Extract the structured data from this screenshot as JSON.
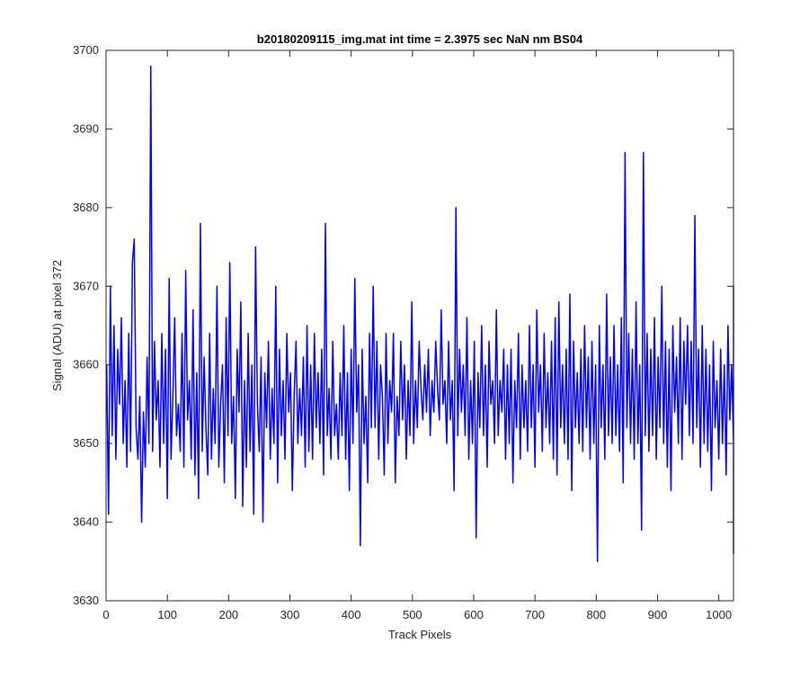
{
  "figure": {
    "background": "#ffffff",
    "axes_color": "#262626",
    "line_color": "#0000ff"
  },
  "chart_data": {
    "type": "line",
    "title": "b20180209115_img.mat int time = 2.3975 sec  NaN nm BS04",
    "xlabel": "Track Pixels",
    "ylabel": "Signal (ADU) at pixel 372",
    "xlim": [
      0,
      1024
    ],
    "ylim": [
      3630,
      3700
    ],
    "xticks": [
      0,
      100,
      200,
      300,
      400,
      500,
      600,
      700,
      800,
      900,
      1000
    ],
    "yticks": [
      3630,
      3640,
      3650,
      3660,
      3670,
      3680,
      3690,
      3700
    ],
    "grid": false,
    "legend": "none",
    "series": [
      {
        "color": "#0000ff",
        "x_start": 1,
        "x_step": 3,
        "values": [
          3660,
          3641,
          3670,
          3651,
          3665,
          3648,
          3662,
          3655,
          3666,
          3650,
          3658,
          3647,
          3664,
          3649,
          3673,
          3676,
          3652,
          3648,
          3656,
          3640,
          3654,
          3647,
          3661,
          3650,
          3698,
          3649,
          3663,
          3653,
          3658,
          3647,
          3664,
          3650,
          3662,
          3643,
          3671,
          3648,
          3656,
          3666,
          3651,
          3655,
          3649,
          3664,
          3647,
          3672,
          3653,
          3658,
          3648,
          3667,
          3646,
          3659,
          3643,
          3678,
          3649,
          3661,
          3652,
          3646,
          3664,
          3648,
          3657,
          3650,
          3670,
          3647,
          3655,
          3660,
          3645,
          3666,
          3651,
          3673,
          3650,
          3656,
          3643,
          3662,
          3654,
          3668,
          3642,
          3658,
          3647,
          3664,
          3649,
          3660,
          3641,
          3675,
          3655,
          3649,
          3661,
          3640,
          3659,
          3652,
          3663,
          3648,
          3657,
          3650,
          3670,
          3645,
          3662,
          3651,
          3658,
          3648,
          3664,
          3654,
          3659,
          3644,
          3656,
          3663,
          3650,
          3657,
          3651,
          3661,
          3647,
          3665,
          3649,
          3660,
          3648,
          3664,
          3652,
          3659,
          3650,
          3662,
          3646,
          3678,
          3651,
          3657,
          3648,
          3663,
          3651,
          3655,
          3648,
          3659,
          3651,
          3665,
          3648,
          3659,
          3644,
          3662,
          3650,
          3671,
          3654,
          3660,
          3637,
          3662,
          3650,
          3656,
          3645,
          3664,
          3652,
          3670,
          3652,
          3663,
          3648,
          3660,
          3656,
          3646,
          3664,
          3650,
          3658,
          3654,
          3664,
          3645,
          3656,
          3651,
          3663,
          3653,
          3660,
          3648,
          3658,
          3651,
          3668,
          3650,
          3658,
          3652,
          3663,
          3657,
          3653,
          3660,
          3654,
          3662,
          3651,
          3658,
          3654,
          3663,
          3657,
          3653,
          3667,
          3655,
          3658,
          3650,
          3663,
          3653,
          3658,
          3644,
          3680,
          3651,
          3662,
          3654,
          3660,
          3651,
          3666,
          3648,
          3658,
          3650,
          3663,
          3638,
          3659,
          3652,
          3665,
          3651,
          3660,
          3647,
          3663,
          3655,
          3658,
          3650,
          3667,
          3651,
          3658,
          3654,
          3662,
          3648,
          3660,
          3650,
          3662,
          3645,
          3658,
          3652,
          3664,
          3648,
          3660,
          3652,
          3658,
          3649,
          3665,
          3652,
          3660,
          3647,
          3667,
          3654,
          3660,
          3649,
          3664,
          3652,
          3659,
          3650,
          3663,
          3648,
          3666,
          3646,
          3668,
          3652,
          3660,
          3650,
          3662,
          3648,
          3669,
          3644,
          3663,
          3652,
          3659,
          3650,
          3662,
          3649,
          3665,
          3652,
          3661,
          3648,
          3663,
          3650,
          3660,
          3635,
          3665,
          3652,
          3660,
          3648,
          3669,
          3651,
          3661,
          3650,
          3665,
          3651,
          3660,
          3649,
          3666,
          3645,
          3687,
          3652,
          3664,
          3650,
          3662,
          3648,
          3668,
          3650,
          3660,
          3639,
          3687,
          3651,
          3664,
          3649,
          3662,
          3651,
          3666,
          3648,
          3661,
          3652,
          3670,
          3650,
          3663,
          3647,
          3662,
          3644,
          3665,
          3654,
          3661,
          3650,
          3666,
          3648,
          3663,
          3655,
          3665,
          3651,
          3663,
          3650,
          3679,
          3652,
          3662,
          3647,
          3665,
          3650,
          3662,
          3649,
          3660,
          3644,
          3663,
          3652,
          3658,
          3648,
          3662,
          3650,
          3660,
          3646,
          3665,
          3653,
          3660,
          3650,
          3663,
          3648,
          3658,
          3650,
          3668,
          3645,
          3656,
          3636,
          3662,
          3650,
          3667,
          3647,
          3658,
          3651,
          3664,
          3643,
          3660,
          3645,
          3670,
          3650,
          3657,
          3648,
          3670
        ]
      }
    ]
  }
}
